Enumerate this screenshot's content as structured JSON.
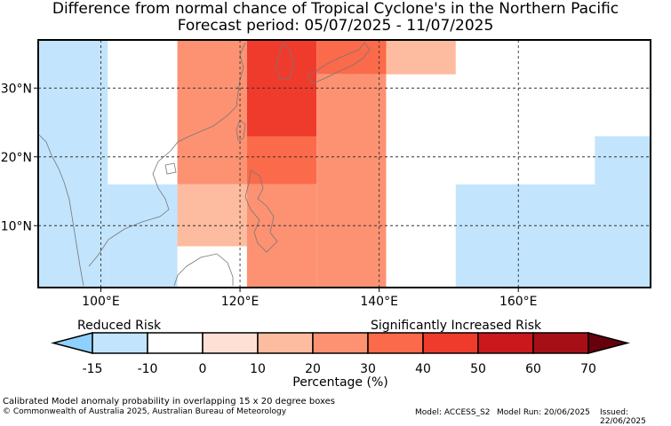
{
  "title_line1": "Difference from normal chance of Tropical Cyclone's in the Northern Pacific",
  "title_line2": "Forecast period: 05/07/2025 - 11/07/2025",
  "map": {
    "lon_range": [
      91,
      179
    ],
    "lat_range": [
      1,
      37
    ],
    "lon_ticks": [
      {
        "value": 100,
        "label": "100°E"
      },
      {
        "value": 120,
        "label": "120°E"
      },
      {
        "value": 140,
        "label": "140°E"
      },
      {
        "value": 160,
        "label": "160°E"
      }
    ],
    "lat_ticks": [
      {
        "value": 10,
        "label": "10°N"
      },
      {
        "value": 20,
        "label": "20°N"
      },
      {
        "value": 30,
        "label": "30°N"
      }
    ],
    "cells": [
      {
        "lon": [
          91,
          101
        ],
        "lat": [
          1,
          37
        ],
        "value": -15
      },
      {
        "lon": [
          101,
          111
        ],
        "lat": [
          16,
          37
        ],
        "value": -10
      },
      {
        "lon": [
          101,
          111
        ],
        "lat": [
          1,
          16
        ],
        "value": -15
      },
      {
        "lon": [
          111,
          121
        ],
        "lat": [
          16,
          37
        ],
        "value": 20
      },
      {
        "lon": [
          111,
          121
        ],
        "lat": [
          7,
          16
        ],
        "value": 10
      },
      {
        "lon": [
          121,
          131
        ],
        "lat": [
          23,
          37
        ],
        "value": 40
      },
      {
        "lon": [
          121,
          131
        ],
        "lat": [
          16,
          23
        ],
        "value": 30
      },
      {
        "lon": [
          121,
          131
        ],
        "lat": [
          1,
          16
        ],
        "value": 20
      },
      {
        "lon": [
          131,
          141
        ],
        "lat": [
          32,
          37
        ],
        "value": 30
      },
      {
        "lon": [
          131,
          141
        ],
        "lat": [
          1,
          32
        ],
        "value": 20
      },
      {
        "lon": [
          141,
          151
        ],
        "lat": [
          32,
          37
        ],
        "value": 10
      },
      {
        "lon": [
          151,
          171
        ],
        "lat": [
          16,
          23
        ],
        "value": -10
      },
      {
        "lon": [
          171,
          179
        ],
        "lat": [
          16,
          23
        ],
        "value": -15
      },
      {
        "lon": [
          151,
          179
        ],
        "lat": [
          1,
          16
        ],
        "value": -15
      }
    ]
  },
  "legend": {
    "left_label": "Reduced Risk",
    "right_label": "Significantly Increased Risk",
    "xlabel": "Percentage (%)",
    "bins": [
      {
        "from": -15,
        "to": -10,
        "color": "#c2e4fd"
      },
      {
        "from": -10,
        "to": 0,
        "color": "#ffffff"
      },
      {
        "from": 0,
        "to": 10,
        "color": "#fee0d5"
      },
      {
        "from": 10,
        "to": 20,
        "color": "#fdbc9f"
      },
      {
        "from": 20,
        "to": 30,
        "color": "#fc9272"
      },
      {
        "from": 30,
        "to": 40,
        "color": "#fb6a4a"
      },
      {
        "from": 40,
        "to": 50,
        "color": "#ef3b2c"
      },
      {
        "from": 50,
        "to": 60,
        "color": "#cb181d"
      },
      {
        "from": 60,
        "to": 70,
        "color": "#a50f15"
      }
    ],
    "under_color": "#8fd1fc",
    "over_color": "#67000d",
    "ticks": [
      "-15",
      "-10",
      "0",
      "10",
      "20",
      "30",
      "40",
      "50",
      "60",
      "70"
    ]
  },
  "footer": {
    "note": "Calibrated Model anomaly probability in overlapping 15 x 20 degree boxes",
    "copyright": "© Commonwealth of Australia 2025, Australian Bureau of Meteorology",
    "model": "Model: ACCESS_S2",
    "model_run": "Model Run: 20/06/2025",
    "issued": "Issued: 22/06/2025"
  }
}
